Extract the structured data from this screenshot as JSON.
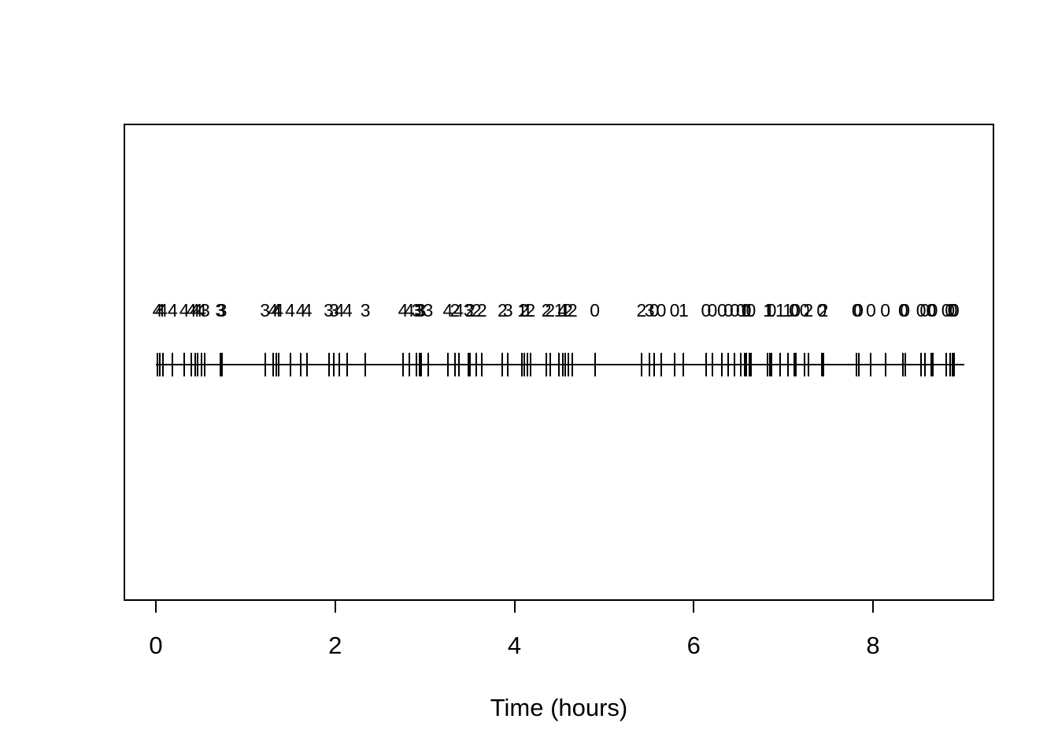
{
  "figure": {
    "background": "#ffffff",
    "foreground": "#000000"
  },
  "chart_data": {
    "type": "scatter",
    "subtype": "rug-event-plot",
    "title": "",
    "xlabel": "Time (hours)",
    "ylabel": "",
    "xlim": [
      0,
      9
    ],
    "x_ticks": [
      "0",
      "2",
      "4",
      "6",
      "8"
    ],
    "x_tick_values": [
      0,
      2,
      4,
      6,
      8
    ],
    "grid": false,
    "legend": false,
    "description": "Event times marked as vertical rug ticks on a horizontal baseline, each event annotated above with a numeric state label (0-4)",
    "events": [
      {
        "t": 0.0,
        "label": "4"
      },
      {
        "t": 0.03,
        "label": "4"
      },
      {
        "t": 0.06,
        "label": "4"
      },
      {
        "t": 0.17,
        "label": "4"
      },
      {
        "t": 0.3,
        "label": "4"
      },
      {
        "t": 0.38,
        "label": "4"
      },
      {
        "t": 0.42,
        "label": "4"
      },
      {
        "t": 0.45,
        "label": "4"
      },
      {
        "t": 0.49,
        "label": "4"
      },
      {
        "t": 0.53,
        "label": "3"
      },
      {
        "t": 0.7,
        "label": "3"
      },
      {
        "t": 0.72,
        "label": "3"
      },
      {
        "t": 1.2,
        "label": "3"
      },
      {
        "t": 1.29,
        "label": "4"
      },
      {
        "t": 1.33,
        "label": "4"
      },
      {
        "t": 1.35,
        "label": "4"
      },
      {
        "t": 1.48,
        "label": "4"
      },
      {
        "t": 1.6,
        "label": "4"
      },
      {
        "t": 1.67,
        "label": "4"
      },
      {
        "t": 1.91,
        "label": "3"
      },
      {
        "t": 1.97,
        "label": "3"
      },
      {
        "t": 2.03,
        "label": "4"
      },
      {
        "t": 2.12,
        "label": "4"
      },
      {
        "t": 2.32,
        "label": "3"
      },
      {
        "t": 2.74,
        "label": "4"
      },
      {
        "t": 2.81,
        "label": "4"
      },
      {
        "t": 2.89,
        "label": "3"
      },
      {
        "t": 2.92,
        "label": "3"
      },
      {
        "t": 2.94,
        "label": "3"
      },
      {
        "t": 3.02,
        "label": "3"
      },
      {
        "t": 3.24,
        "label": "4"
      },
      {
        "t": 3.32,
        "label": "2"
      },
      {
        "t": 3.36,
        "label": "4"
      },
      {
        "t": 3.47,
        "label": "3"
      },
      {
        "t": 3.49,
        "label": "2"
      },
      {
        "t": 3.56,
        "label": "2"
      },
      {
        "t": 3.62,
        "label": "2"
      },
      {
        "t": 3.85,
        "label": "2"
      },
      {
        "t": 3.91,
        "label": "3"
      },
      {
        "t": 4.07,
        "label": "1"
      },
      {
        "t": 4.09,
        "label": "2"
      },
      {
        "t": 4.13,
        "label": "1"
      },
      {
        "t": 4.16,
        "label": "2"
      },
      {
        "t": 4.34,
        "label": "2"
      },
      {
        "t": 4.38,
        "label": "2"
      },
      {
        "t": 4.48,
        "label": "1"
      },
      {
        "t": 4.52,
        "label": "4"
      },
      {
        "t": 4.55,
        "label": "1"
      },
      {
        "t": 4.58,
        "label": "2"
      },
      {
        "t": 4.63,
        "label": "2"
      },
      {
        "t": 4.88,
        "label": "0"
      },
      {
        "t": 5.4,
        "label": "2"
      },
      {
        "t": 5.49,
        "label": "3"
      },
      {
        "t": 5.54,
        "label": "0"
      },
      {
        "t": 5.62,
        "label": "0"
      },
      {
        "t": 5.77,
        "label": "0"
      },
      {
        "t": 5.87,
        "label": "1"
      },
      {
        "t": 6.12,
        "label": "0"
      },
      {
        "t": 6.19,
        "label": "0"
      },
      {
        "t": 6.3,
        "label": "0"
      },
      {
        "t": 6.37,
        "label": "0"
      },
      {
        "t": 6.44,
        "label": "0"
      },
      {
        "t": 6.51,
        "label": "0"
      },
      {
        "t": 6.55,
        "label": "1"
      },
      {
        "t": 6.57,
        "label": "0"
      },
      {
        "t": 6.6,
        "label": "1"
      },
      {
        "t": 6.62,
        "label": "0"
      },
      {
        "t": 6.81,
        "label": "1"
      },
      {
        "t": 6.83,
        "label": "1"
      },
      {
        "t": 6.85,
        "label": "0"
      },
      {
        "t": 6.95,
        "label": "1"
      },
      {
        "t": 7.03,
        "label": "1"
      },
      {
        "t": 7.1,
        "label": "0"
      },
      {
        "t": 7.12,
        "label": "0"
      },
      {
        "t": 7.22,
        "label": "0"
      },
      {
        "t": 7.26,
        "label": "2"
      },
      {
        "t": 7.41,
        "label": "0"
      },
      {
        "t": 7.43,
        "label": "2"
      },
      {
        "t": 7.8,
        "label": "0"
      },
      {
        "t": 7.82,
        "label": "0"
      },
      {
        "t": 7.96,
        "label": "0"
      },
      {
        "t": 8.12,
        "label": "0"
      },
      {
        "t": 8.32,
        "label": "0"
      },
      {
        "t": 8.34,
        "label": "0"
      },
      {
        "t": 8.52,
        "label": "0"
      },
      {
        "t": 8.56,
        "label": "0"
      },
      {
        "t": 8.63,
        "label": "0"
      },
      {
        "t": 8.65,
        "label": "0"
      },
      {
        "t": 8.8,
        "label": "0"
      },
      {
        "t": 8.84,
        "label": "0"
      },
      {
        "t": 8.87,
        "label": "0"
      },
      {
        "t": 8.89,
        "label": "0"
      }
    ]
  }
}
